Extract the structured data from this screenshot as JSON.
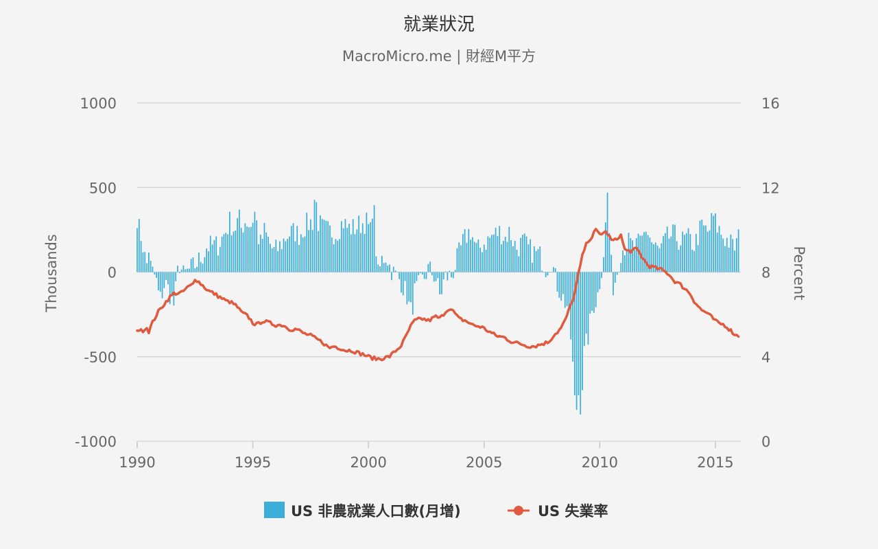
{
  "chart_data": {
    "type": "bar+line",
    "title": "就業狀況",
    "subtitle": "MacroMicro.me | 財經M平方",
    "x_ticks": [
      "1990",
      "1995",
      "2000",
      "2005",
      "2010",
      "2015"
    ],
    "x_range": [
      1990.0,
      2016.1
    ],
    "y_left": {
      "label": "Thousands",
      "range": [
        -1000,
        1000
      ],
      "ticks": [
        "1000",
        "500",
        "0",
        "-500",
        "-1000"
      ]
    },
    "y_right": {
      "label": "Percent",
      "range": [
        0,
        16
      ],
      "ticks": [
        "16",
        "12",
        "8",
        "4",
        "0"
      ]
    },
    "grid": true,
    "legend_position": "bottom-center",
    "series": [
      {
        "name": "US 非農就業人口數(月增)",
        "type": "bar",
        "axis": "left",
        "color": "#3bafd9",
        "anchors": [
          [
            1990.0,
            330
          ],
          [
            1990.1,
            240
          ],
          [
            1990.2,
            200
          ],
          [
            1990.4,
            30
          ],
          [
            1990.5,
            140
          ],
          [
            1990.6,
            10
          ],
          [
            1990.8,
            -30
          ],
          [
            1990.9,
            -120
          ],
          [
            1991.0,
            -160
          ],
          [
            1991.2,
            -60
          ],
          [
            1991.4,
            -120
          ],
          [
            1991.6,
            -200
          ],
          [
            1991.8,
            60
          ],
          [
            1992.0,
            -20
          ],
          [
            1992.5,
            40
          ],
          [
            1992.9,
            110
          ],
          [
            1993.0,
            150
          ],
          [
            1993.5,
            160
          ],
          [
            1993.9,
            260
          ],
          [
            1994.0,
            300
          ],
          [
            1994.2,
            250
          ],
          [
            1994.4,
            320
          ],
          [
            1994.5,
            260
          ],
          [
            1994.7,
            310
          ],
          [
            1994.9,
            270
          ],
          [
            1995.1,
            360
          ],
          [
            1995.3,
            150
          ],
          [
            1995.5,
            240
          ],
          [
            1995.7,
            180
          ],
          [
            1995.9,
            120
          ],
          [
            1996.1,
            140
          ],
          [
            1996.5,
            220
          ],
          [
            1996.8,
            240
          ],
          [
            1997.0,
            220
          ],
          [
            1997.3,
            280
          ],
          [
            1997.6,
            300
          ],
          [
            1997.7,
            500
          ],
          [
            1997.8,
            300
          ],
          [
            1998.0,
            260
          ],
          [
            1998.3,
            240
          ],
          [
            1998.6,
            230
          ],
          [
            1998.9,
            300
          ],
          [
            1999.1,
            260
          ],
          [
            1999.4,
            260
          ],
          [
            1999.6,
            280
          ],
          [
            1999.9,
            300
          ],
          [
            2000.1,
            230
          ],
          [
            2000.2,
            460
          ],
          [
            2000.3,
            220
          ],
          [
            2000.4,
            -30
          ],
          [
            2000.6,
            80
          ],
          [
            2000.8,
            100
          ],
          [
            2000.9,
            40
          ],
          [
            2001.1,
            -10
          ],
          [
            2001.4,
            -50
          ],
          [
            2001.7,
            -150
          ],
          [
            2001.8,
            -250
          ],
          [
            2001.9,
            -200
          ],
          [
            2002.0,
            -120
          ],
          [
            2002.3,
            -60
          ],
          [
            2002.6,
            20
          ],
          [
            2002.9,
            -30
          ],
          [
            2003.1,
            -150
          ],
          [
            2003.3,
            -30
          ],
          [
            2003.6,
            -20
          ],
          [
            2003.9,
            100
          ],
          [
            2004.1,
            180
          ],
          [
            2004.4,
            250
          ],
          [
            2004.7,
            120
          ],
          [
            2004.9,
            160
          ],
          [
            2005.1,
            180
          ],
          [
            2005.4,
            220
          ],
          [
            2005.7,
            240
          ],
          [
            2005.9,
            200
          ],
          [
            2006.1,
            240
          ],
          [
            2006.4,
            140
          ],
          [
            2006.7,
            180
          ],
          [
            2006.9,
            140
          ],
          [
            2007.1,
            120
          ],
          [
            2007.4,
            100
          ],
          [
            2007.7,
            20
          ],
          [
            2007.9,
            80
          ],
          [
            2008.1,
            -50
          ],
          [
            2008.4,
            -150
          ],
          [
            2008.6,
            -200
          ],
          [
            2008.8,
            -450
          ],
          [
            2008.9,
            -760
          ],
          [
            2009.0,
            -800
          ],
          [
            2009.1,
            -700
          ],
          [
            2009.2,
            -820
          ],
          [
            2009.3,
            -500
          ],
          [
            2009.5,
            -380
          ],
          [
            2009.7,
            -200
          ],
          [
            2009.9,
            -150
          ],
          [
            2010.1,
            40
          ],
          [
            2010.2,
            160
          ],
          [
            2010.35,
            500
          ],
          [
            2010.45,
            100
          ],
          [
            2010.6,
            -100
          ],
          [
            2010.9,
            120
          ],
          [
            2011.2,
            180
          ],
          [
            2011.5,
            140
          ],
          [
            2011.8,
            180
          ],
          [
            2012.0,
            260
          ],
          [
            2012.3,
            160
          ],
          [
            2012.6,
            120
          ],
          [
            2012.9,
            200
          ],
          [
            2013.2,
            220
          ],
          [
            2013.5,
            180
          ],
          [
            2013.8,
            200
          ],
          [
            2014.1,
            160
          ],
          [
            2014.4,
            270
          ],
          [
            2014.7,
            230
          ],
          [
            2014.9,
            330
          ],
          [
            2015.1,
            260
          ],
          [
            2015.4,
            200
          ],
          [
            2015.6,
            180
          ],
          [
            2015.8,
            140
          ],
          [
            2016.0,
            200
          ]
        ]
      },
      {
        "name": "US 失業率",
        "type": "line",
        "axis": "right",
        "color": "#e05a3f",
        "anchors": [
          [
            1990.0,
            5.3
          ],
          [
            1990.2,
            5.2
          ],
          [
            1990.4,
            5.4
          ],
          [
            1990.5,
            5.2
          ],
          [
            1990.7,
            5.7
          ],
          [
            1990.9,
            6.1
          ],
          [
            1991.1,
            6.4
          ],
          [
            1991.4,
            6.8
          ],
          [
            1991.6,
            7.0
          ],
          [
            1991.9,
            7.0
          ],
          [
            1992.2,
            7.3
          ],
          [
            1992.4,
            7.4
          ],
          [
            1992.5,
            7.7
          ],
          [
            1992.7,
            7.5
          ],
          [
            1992.9,
            7.3
          ],
          [
            1993.1,
            7.1
          ],
          [
            1993.3,
            7.0
          ],
          [
            1993.6,
            6.8
          ],
          [
            1993.9,
            6.6
          ],
          [
            1994.0,
            6.6
          ],
          [
            1994.3,
            6.4
          ],
          [
            1994.5,
            6.1
          ],
          [
            1994.8,
            5.9
          ],
          [
            1995.0,
            5.6
          ],
          [
            1995.2,
            5.5
          ],
          [
            1995.4,
            5.7
          ],
          [
            1995.7,
            5.6
          ],
          [
            1996.0,
            5.5
          ],
          [
            1996.3,
            5.5
          ],
          [
            1996.6,
            5.3
          ],
          [
            1996.9,
            5.3
          ],
          [
            1997.2,
            5.1
          ],
          [
            1997.5,
            5.0
          ],
          [
            1997.8,
            4.8
          ],
          [
            1998.0,
            4.7
          ],
          [
            1998.3,
            4.4
          ],
          [
            1998.5,
            4.5
          ],
          [
            1998.8,
            4.4
          ],
          [
            1999.0,
            4.3
          ],
          [
            1999.3,
            4.3
          ],
          [
            1999.5,
            4.2
          ],
          [
            1999.8,
            4.1
          ],
          [
            2000.0,
            4.0
          ],
          [
            2000.3,
            3.9
          ],
          [
            2000.5,
            3.9
          ],
          [
            2000.9,
            4.0
          ],
          [
            2001.1,
            4.2
          ],
          [
            2001.4,
            4.5
          ],
          [
            2001.6,
            4.9
          ],
          [
            2001.8,
            5.4
          ],
          [
            2002.0,
            5.7
          ],
          [
            2002.3,
            5.8
          ],
          [
            2002.6,
            5.7
          ],
          [
            2002.9,
            5.9
          ],
          [
            2003.1,
            5.8
          ],
          [
            2003.3,
            6.1
          ],
          [
            2003.5,
            6.3
          ],
          [
            2003.7,
            6.1
          ],
          [
            2003.9,
            5.8
          ],
          [
            2004.2,
            5.7
          ],
          [
            2004.5,
            5.5
          ],
          [
            2004.9,
            5.4
          ],
          [
            2005.2,
            5.2
          ],
          [
            2005.5,
            5.0
          ],
          [
            2005.9,
            4.9
          ],
          [
            2006.2,
            4.7
          ],
          [
            2006.6,
            4.6
          ],
          [
            2006.9,
            4.5
          ],
          [
            2007.2,
            4.5
          ],
          [
            2007.5,
            4.6
          ],
          [
            2007.8,
            4.7
          ],
          [
            2008.0,
            5.0
          ],
          [
            2008.3,
            5.3
          ],
          [
            2008.5,
            5.7
          ],
          [
            2008.7,
            6.3
          ],
          [
            2008.9,
            6.9
          ],
          [
            2009.1,
            8.0
          ],
          [
            2009.3,
            9.0
          ],
          [
            2009.5,
            9.5
          ],
          [
            2009.7,
            9.7
          ],
          [
            2009.8,
            10.0
          ],
          [
            2010.0,
            9.8
          ],
          [
            2010.3,
            9.9
          ],
          [
            2010.5,
            9.5
          ],
          [
            2010.7,
            9.5
          ],
          [
            2010.9,
            9.8
          ],
          [
            2011.1,
            9.0
          ],
          [
            2011.4,
            9.0
          ],
          [
            2011.6,
            9.1
          ],
          [
            2011.9,
            8.6
          ],
          [
            2012.1,
            8.3
          ],
          [
            2012.4,
            8.2
          ],
          [
            2012.7,
            8.1
          ],
          [
            2013.0,
            7.9
          ],
          [
            2013.2,
            7.6
          ],
          [
            2013.5,
            7.4
          ],
          [
            2013.9,
            7.0
          ],
          [
            2014.1,
            6.6
          ],
          [
            2014.4,
            6.2
          ],
          [
            2014.6,
            6.1
          ],
          [
            2014.9,
            5.8
          ],
          [
            2015.1,
            5.6
          ],
          [
            2015.4,
            5.5
          ],
          [
            2015.6,
            5.3
          ],
          [
            2015.9,
            5.0
          ],
          [
            2016.0,
            5.0
          ]
        ]
      }
    ]
  }
}
